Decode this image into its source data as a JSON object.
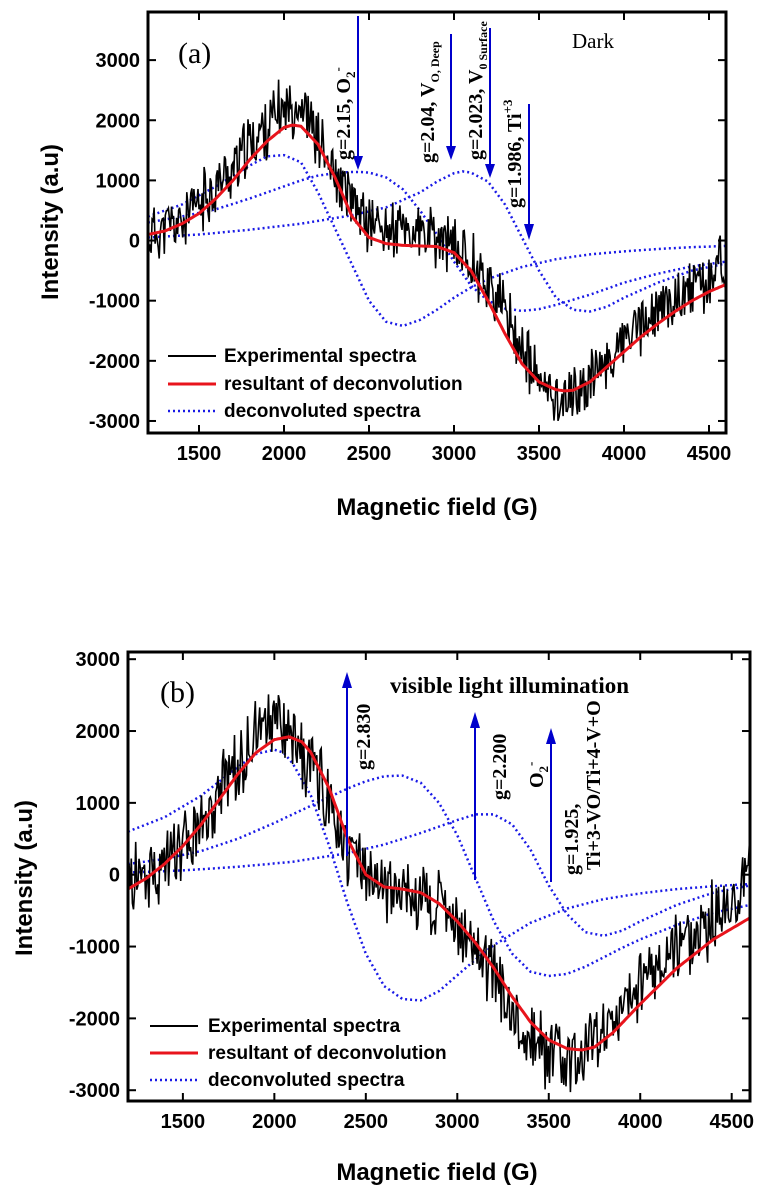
{
  "chart_data": [
    {
      "type": "line",
      "panel_label": "(a)",
      "condition_label": "Dark",
      "xlabel": "Magnetic field (G)",
      "ylabel": "Intensity (a.u)",
      "xlim": [
        1200,
        4600
      ],
      "ylim": [
        -3200,
        3800
      ],
      "xticks": [
        "1500",
        "2000",
        "2500",
        "3000",
        "3500",
        "4000",
        "4500"
      ],
      "yticks": [
        "3000",
        "2000",
        "1000",
        "0",
        "-1000",
        "-2000",
        "-3000"
      ],
      "legend_position": "bottom-left",
      "annotations": [
        {
          "text": "g=2.15, O",
          "sup": "-",
          "sub": "2",
          "x": 2450,
          "arrow_dir": "down",
          "color": "#0000cc"
        },
        {
          "text": "g=2.04, V",
          "sub": "O, Deep",
          "x": 2980,
          "arrow_dir": "down",
          "color": "#0000cc"
        },
        {
          "text": "g=2.023, V",
          "sub": "0 Surface",
          "x": 3200,
          "arrow_dir": "down",
          "color": "#0000cc"
        },
        {
          "text": "g=1.986, Ti",
          "sup": "+3",
          "x": 3430,
          "arrow_dir": "down",
          "color": "#0000cc"
        }
      ],
      "series": [
        {
          "name": "Experimental spectra",
          "style": "solid",
          "color": "#000000",
          "x": [
            1200,
            1300,
            1400,
            1500,
            1600,
            1700,
            1800,
            1900,
            2000,
            2100,
            2200,
            2300,
            2400,
            2500,
            2600,
            2700,
            2800,
            2900,
            3000,
            3100,
            3200,
            3300,
            3400,
            3500,
            3600,
            3700,
            3800,
            3900,
            4000,
            4100,
            4200,
            4300,
            4400,
            4500,
            4600
          ],
          "values": [
            100,
            200,
            300,
            600,
            900,
            1200,
            1600,
            1900,
            2200,
            2300,
            1700,
            1000,
            600,
            300,
            200,
            150,
            100,
            0,
            -100,
            -300,
            -700,
            -1200,
            -1800,
            -2400,
            -2600,
            -2600,
            -2300,
            -2000,
            -1700,
            -1400,
            -1200,
            -1000,
            -800,
            -700,
            -200
          ],
          "noise_amplitude": 450
        },
        {
          "name": "resultant of deconvolution",
          "style": "solid",
          "color": "#e8141c",
          "x": [
            1200,
            1300,
            1400,
            1500,
            1600,
            1700,
            1800,
            1900,
            2000,
            2050,
            2100,
            2200,
            2300,
            2400,
            2500,
            2600,
            2700,
            2800,
            2900,
            3000,
            3100,
            3200,
            3300,
            3400,
            3500,
            3600,
            3650,
            3700,
            3800,
            3900,
            4000,
            4100,
            4200,
            4300,
            4400,
            4500,
            4600
          ],
          "values": [
            100,
            160,
            280,
            450,
            700,
            1000,
            1350,
            1650,
            1880,
            1920,
            1900,
            1600,
            1050,
            400,
            50,
            -50,
            -80,
            -90,
            -100,
            -200,
            -500,
            -1000,
            -1550,
            -2050,
            -2350,
            -2480,
            -2500,
            -2490,
            -2350,
            -2100,
            -1850,
            -1600,
            -1380,
            -1180,
            -1000,
            -850,
            -730
          ]
        },
        {
          "name": "deconvoluted spectra",
          "style": "dotted",
          "color": "#1a1ae6",
          "x": [
            1200,
            1400,
            1600,
            1800,
            1900,
            2000,
            2100,
            2200,
            2300,
            2400,
            2500,
            2600,
            2700,
            2800,
            2900,
            3000,
            3100,
            3200,
            3400,
            3600,
            3800,
            4000,
            4200,
            4400,
            4600
          ],
          "values": [
            400,
            600,
            900,
            1250,
            1400,
            1420,
            1300,
            800,
            200,
            -400,
            -1000,
            -1350,
            -1420,
            -1320,
            -1150,
            -950,
            -780,
            -640,
            -440,
            -310,
            -230,
            -180,
            -140,
            -110,
            -90
          ]
        },
        {
          "name": "",
          "style": "dotted",
          "color": "#1a1ae6",
          "x": [
            1200,
            1400,
            1600,
            1800,
            2000,
            2100,
            2200,
            2300,
            2400,
            2450,
            2500,
            2600,
            2700,
            2800,
            2900,
            3000,
            3100,
            3200,
            3300,
            3400,
            3500,
            3600,
            3800,
            4000,
            4200,
            4400,
            4600
          ],
          "values": [
            300,
            400,
            520,
            700,
            900,
            1000,
            1080,
            1120,
            1140,
            1140,
            1130,
            1050,
            850,
            500,
            100,
            -350,
            -750,
            -1000,
            -1130,
            -1170,
            -1140,
            -1070,
            -900,
            -700,
            -550,
            -430,
            -350
          ]
        },
        {
          "name": "",
          "style": "dotted",
          "color": "#1a1ae6",
          "x": [
            1200,
            1500,
            1800,
            2100,
            2400,
            2600,
            2800,
            2900,
            3000,
            3050,
            3100,
            3200,
            3300,
            3400,
            3500,
            3600,
            3700,
            3800,
            3900,
            4000,
            4200,
            4400,
            4600
          ],
          "values": [
            50,
            100,
            180,
            280,
            420,
            550,
            800,
            980,
            1120,
            1150,
            1130,
            980,
            600,
            50,
            -500,
            -950,
            -1150,
            -1180,
            -1100,
            -950,
            -700,
            -500,
            -380
          ]
        }
      ]
    },
    {
      "type": "line",
      "panel_label": "(b)",
      "condition_label": "visible light illumination",
      "xlabel": "Magnetic field (G)",
      "ylabel": "Intensity (a.u)",
      "xlim": [
        1200,
        4600
      ],
      "ylim": [
        -3150,
        3100
      ],
      "xticks": [
        "1500",
        "2000",
        "2500",
        "3000",
        "3500",
        "4000",
        "4500"
      ],
      "yticks": [
        "3000",
        "2000",
        "1000",
        "0",
        "-1000",
        "-2000",
        "-3000"
      ],
      "legend_position": "bottom-left",
      "annotations": [
        {
          "text": "g=2.830",
          "x": 2390,
          "arrow_dir": "up",
          "color": "#0000cc"
        },
        {
          "text": "g=2.200",
          "x": 3070,
          "arrow_dir": "up",
          "color": "#0000cc"
        },
        {
          "text": "O",
          "sup": "-",
          "sub": "2",
          "x": 3080,
          "arrow_dir": "",
          "color": "#0000cc"
        },
        {
          "text": "g=1.925,",
          "x": 3530,
          "arrow_dir": "up",
          "color": "#0000cc"
        },
        {
          "text": "Ti+3-VO/Ti+4-V+O",
          "x": 3530,
          "arrow_dir": "",
          "color": "#0000cc"
        }
      ],
      "series": [
        {
          "name": "Experimental spectra",
          "style": "solid",
          "color": "#000000",
          "x": [
            1200,
            1300,
            1400,
            1500,
            1600,
            1700,
            1800,
            1900,
            2000,
            2100,
            2200,
            2300,
            2400,
            2500,
            2600,
            2700,
            2800,
            2900,
            3000,
            3100,
            3200,
            3300,
            3400,
            3500,
            3600,
            3700,
            3800,
            3900,
            4000,
            4100,
            4200,
            4300,
            4400,
            4500,
            4600
          ],
          "values": [
            -100,
            100,
            100,
            300,
            700,
            1100,
            1500,
            2000,
            2100,
            1900,
            1500,
            1000,
            400,
            -100,
            -200,
            -200,
            -300,
            -500,
            -700,
            -1000,
            -1400,
            -1900,
            -2300,
            -2500,
            -2600,
            -2500,
            -2200,
            -1800,
            -1500,
            -1200,
            -1000,
            -800,
            -600,
            -400,
            200
          ],
          "noise_amplitude": 450
        },
        {
          "name": "resultant of deconvolution",
          "style": "solid",
          "color": "#e8141c",
          "x": [
            1200,
            1300,
            1400,
            1500,
            1600,
            1700,
            1800,
            1900,
            2000,
            2080,
            2150,
            2200,
            2300,
            2400,
            2500,
            2600,
            2700,
            2800,
            2900,
            3000,
            3100,
            3200,
            3300,
            3400,
            3500,
            3600,
            3680,
            3750,
            3850,
            4000,
            4200,
            4400,
            4600
          ],
          "values": [
            -200,
            -50,
            150,
            400,
            700,
            1050,
            1400,
            1700,
            1880,
            1920,
            1850,
            1700,
            1200,
            500,
            0,
            -170,
            -200,
            -250,
            -400,
            -650,
            -950,
            -1300,
            -1700,
            -2050,
            -2300,
            -2420,
            -2440,
            -2400,
            -2200,
            -1800,
            -1300,
            -900,
            -600
          ]
        },
        {
          "name": "deconvoluted spectra",
          "style": "dotted",
          "color": "#1a1ae6",
          "x": [
            1200,
            1400,
            1600,
            1800,
            1900,
            2000,
            2050,
            2100,
            2200,
            2300,
            2400,
            2500,
            2600,
            2700,
            2800,
            2900,
            3000,
            3100,
            3200,
            3400,
            3600,
            3800,
            4000,
            4200,
            4400,
            4600
          ],
          "values": [
            600,
            800,
            1100,
            1500,
            1680,
            1740,
            1700,
            1550,
            1100,
            400,
            -400,
            -1100,
            -1550,
            -1730,
            -1750,
            -1620,
            -1400,
            -1180,
            -980,
            -670,
            -470,
            -340,
            -260,
            -200,
            -160,
            -130
          ]
        },
        {
          "name": "",
          "style": "dotted",
          "color": "#1a1ae6",
          "x": [
            1200,
            1400,
            1600,
            1800,
            2000,
            2200,
            2400,
            2500,
            2600,
            2700,
            2800,
            2900,
            3000,
            3100,
            3200,
            3300,
            3400,
            3500,
            3600,
            3700,
            3800,
            3900,
            4000,
            4200,
            4400,
            4600
          ],
          "values": [
            150,
            220,
            330,
            500,
            720,
            960,
            1200,
            1300,
            1370,
            1380,
            1280,
            1000,
            550,
            -50,
            -650,
            -1100,
            -1350,
            -1410,
            -1380,
            -1280,
            -1150,
            -1020,
            -900,
            -700,
            -530,
            -420
          ]
        },
        {
          "name": "",
          "style": "dotted",
          "color": "#1a1ae6",
          "x": [
            1200,
            1500,
            1800,
            2100,
            2400,
            2600,
            2800,
            3000,
            3100,
            3200,
            3300,
            3400,
            3500,
            3600,
            3700,
            3800,
            3900,
            4000,
            4200,
            4400,
            4600
          ],
          "values": [
            30,
            60,
            110,
            180,
            300,
            420,
            580,
            760,
            840,
            840,
            700,
            350,
            -150,
            -550,
            -800,
            -850,
            -780,
            -650,
            -420,
            -250,
            -150
          ]
        }
      ]
    }
  ]
}
